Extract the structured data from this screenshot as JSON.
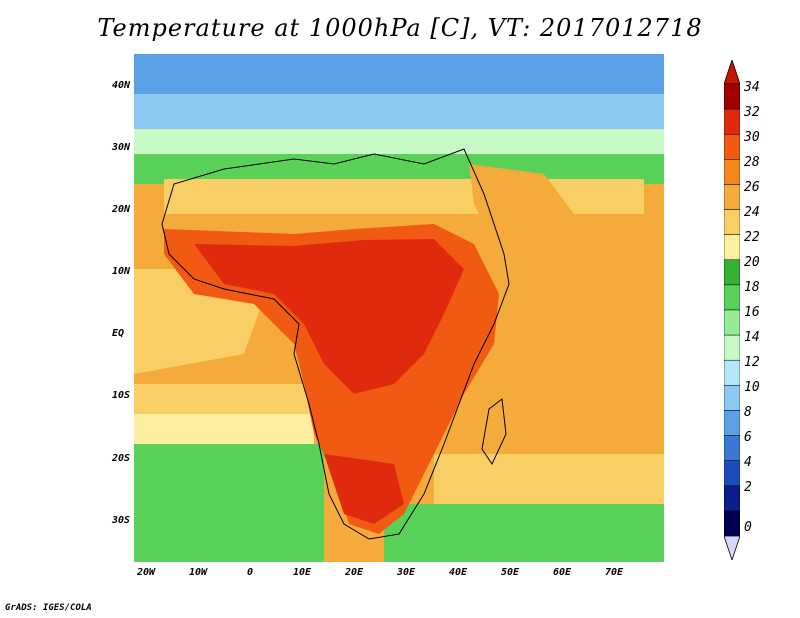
{
  "title": "Temperature at 1000hPa [C], VT: 2017012718",
  "credit": "GrADS: IGES/COLA",
  "map": {
    "lon_labels": [
      "20W",
      "10W",
      "0",
      "10E",
      "20E",
      "30E",
      "40E",
      "50E",
      "60E",
      "70E"
    ],
    "lat_labels": [
      "40N",
      "30N",
      "20N",
      "10N",
      "EQ",
      "10S",
      "20S",
      "30S"
    ],
    "lon_range": [
      -22,
      80
    ],
    "lat_range": [
      -37,
      45
    ],
    "land_color": "#000000"
  },
  "colorbar": {
    "labels": [
      "34",
      "32",
      "30",
      "28",
      "26",
      "24",
      "22",
      "20",
      "18",
      "16",
      "14",
      "12",
      "10",
      "8",
      "6",
      "4",
      "2",
      "0"
    ],
    "colors": [
      "#a00000",
      "#e02a0e",
      "#f05a12",
      "#f4881a",
      "#f5aa3c",
      "#f9cf65",
      "#fcf0a0",
      "#33b233",
      "#5ad25a",
      "#96ec96",
      "#c8fac8",
      "#b4e6fa",
      "#8cc8f0",
      "#5aa0e6",
      "#3c78d2",
      "#1e4bbe",
      "#0a1e8c",
      "#000050"
    ],
    "under_color": "#d8d8f8",
    "over_color": "#c81400"
  }
}
